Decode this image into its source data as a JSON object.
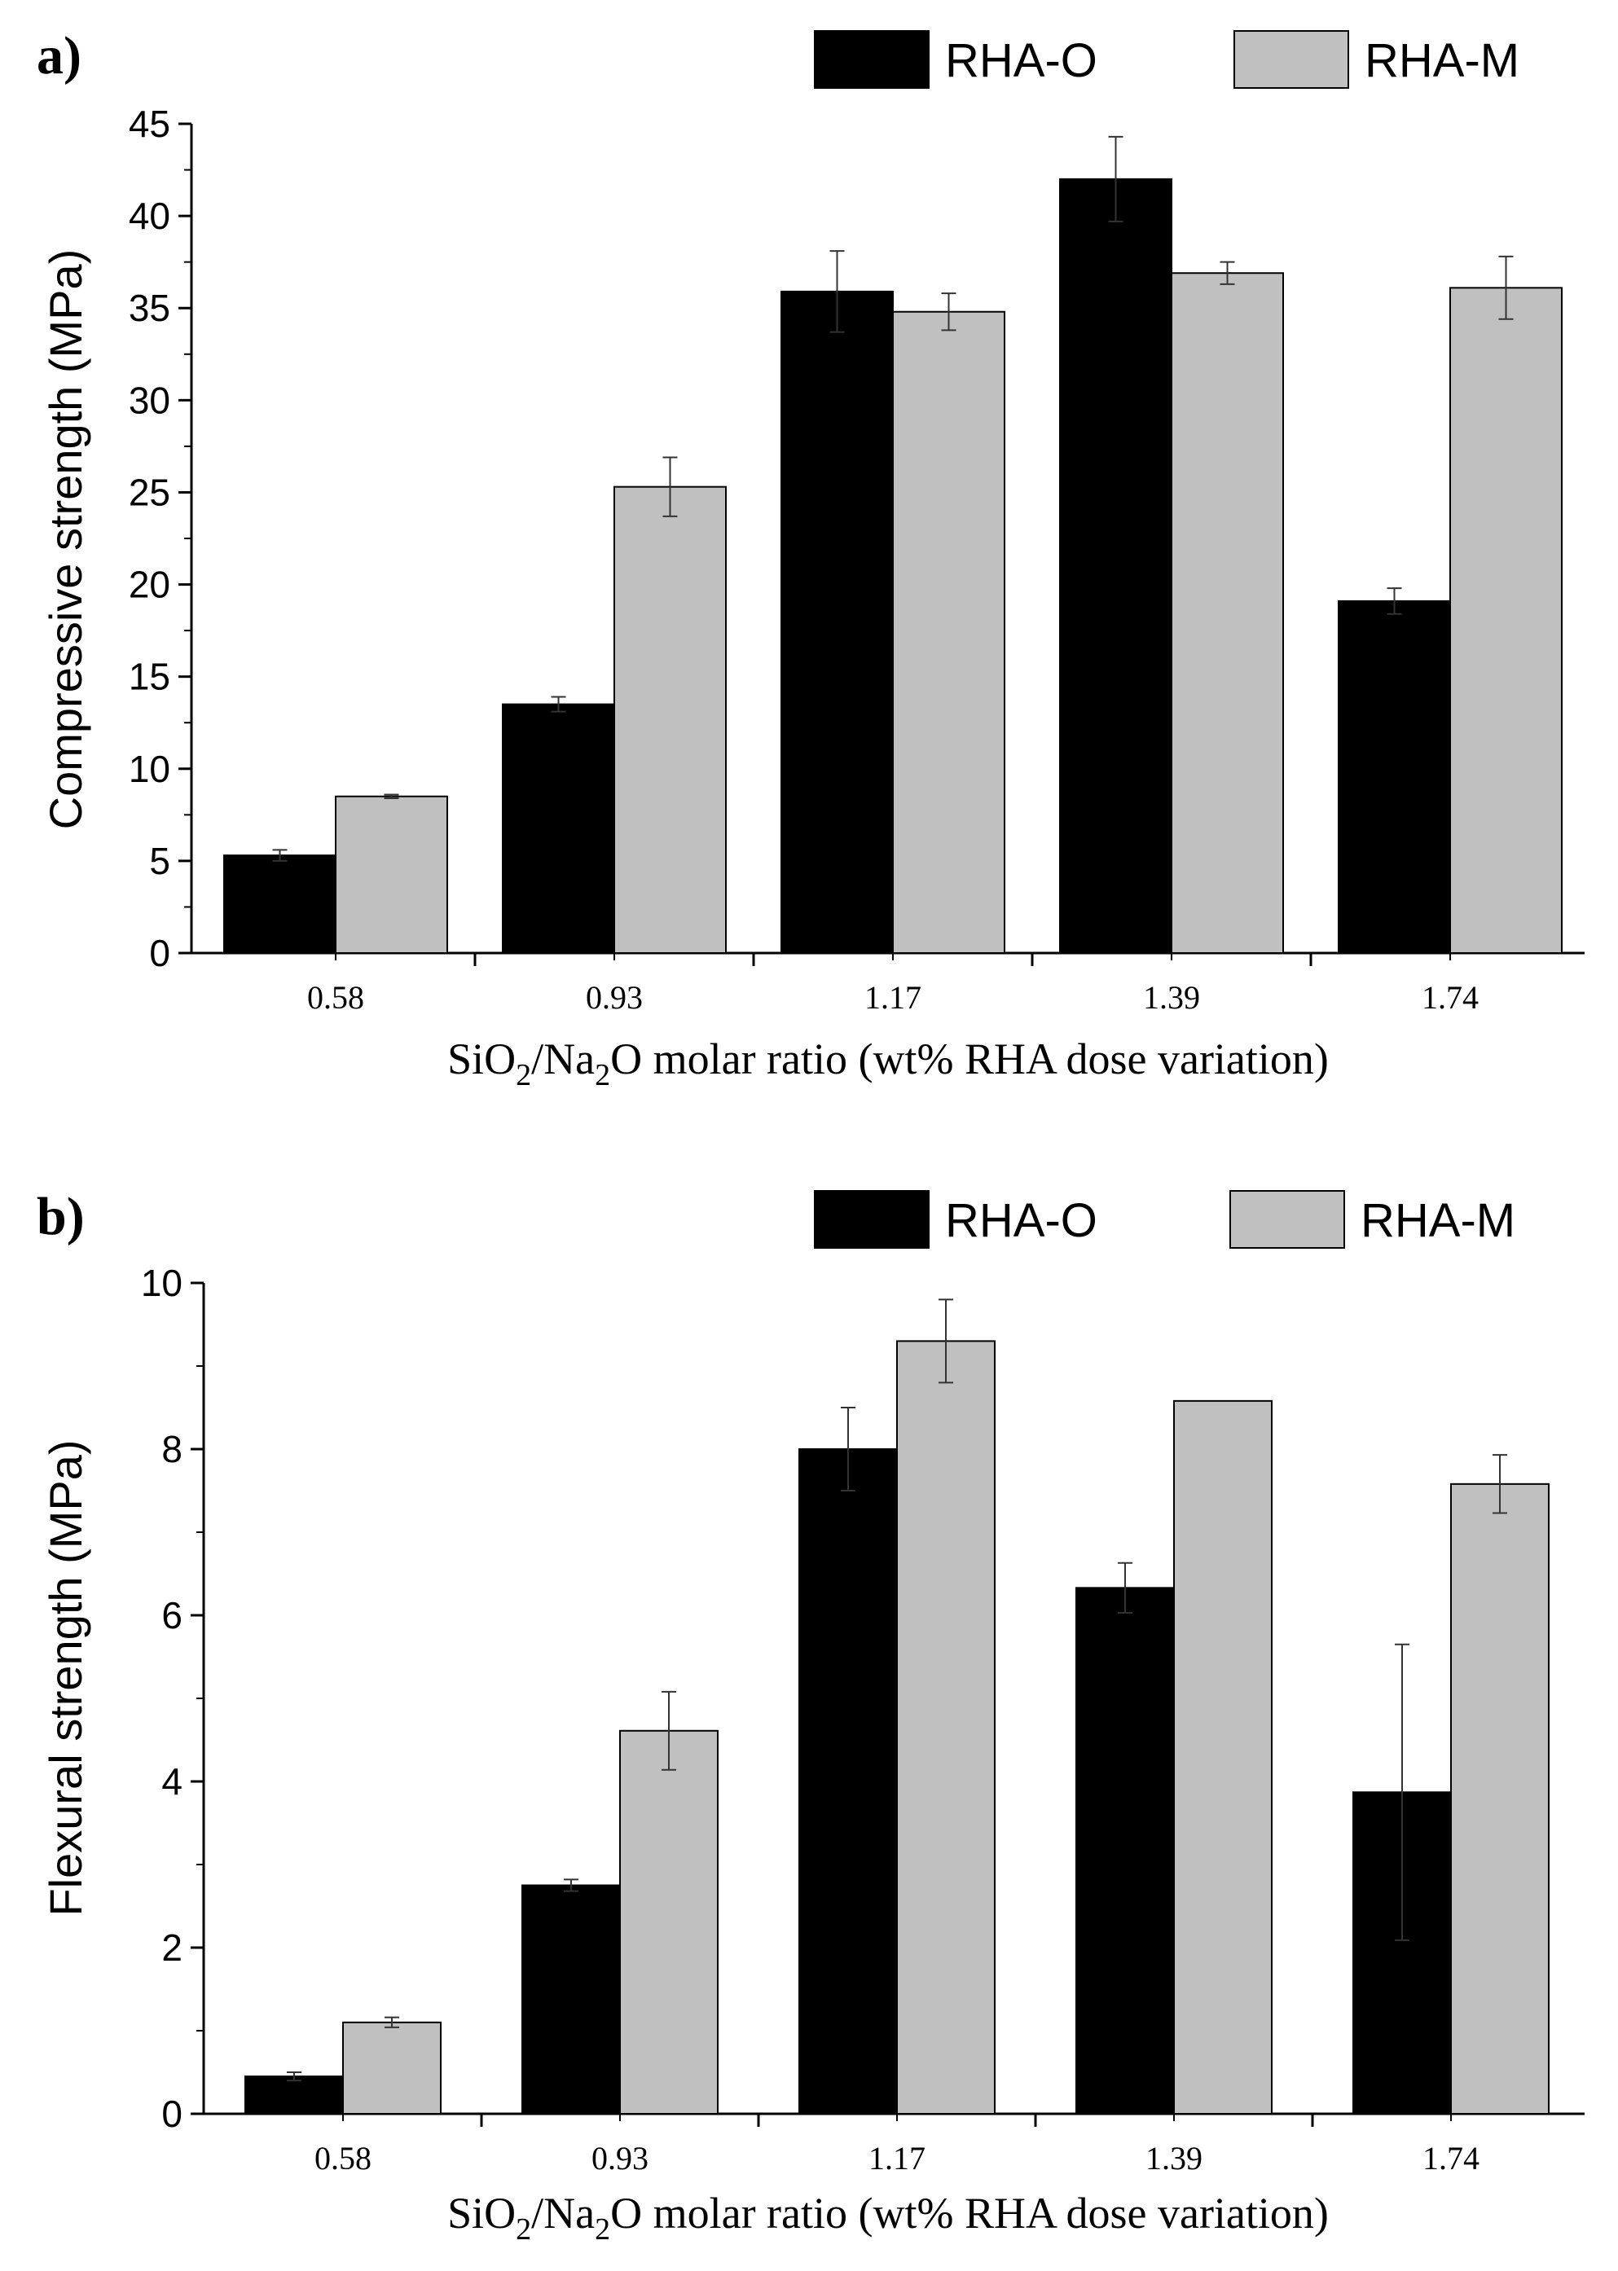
{
  "chart_data": [
    {
      "type": "bar",
      "panel_label": "a",
      "categories": [
        "0.58",
        "0.93",
        "1.17",
        "1.39",
        "1.74"
      ],
      "series": [
        {
          "name": "RHA-O",
          "color": "#000000",
          "values": [
            5.3,
            13.5,
            35.9,
            42.0,
            19.1
          ],
          "errors": [
            0.3,
            0.4,
            2.2,
            2.3,
            0.7
          ]
        },
        {
          "name": "RHA-M",
          "color": "#c0c0c0",
          "values": [
            8.5,
            25.3,
            34.8,
            36.9,
            36.1
          ],
          "errors": [
            0.1,
            1.6,
            1.0,
            0.6,
            1.7
          ]
        }
      ],
      "ylabel": "Compressive strength (MPa)",
      "xlabel": {
        "pre": "SiO",
        "sub1": "2",
        "mid": "/Na",
        "sub2": "2",
        "post": "O molar ratio (wt% RHA dose variation)"
      },
      "ylim": [
        0,
        45
      ],
      "yticks": [
        0,
        5,
        10,
        15,
        20,
        25,
        30,
        35,
        40,
        45
      ]
    },
    {
      "type": "bar",
      "panel_label": "b",
      "categories": [
        "0.58",
        "0.93",
        "1.17",
        "1.39",
        "1.74"
      ],
      "series": [
        {
          "name": "RHA-O",
          "color": "#000000",
          "values": [
            0.45,
            2.75,
            8.0,
            6.33,
            3.87
          ],
          "errors": [
            0.05,
            0.07,
            0.5,
            0.3,
            1.78
          ]
        },
        {
          "name": "RHA-M",
          "color": "#c0c0c0",
          "values": [
            1.1,
            4.61,
            9.3,
            8.58,
            7.58
          ],
          "errors": [
            0.06,
            0.47,
            0.5,
            0,
            0.35
          ]
        }
      ],
      "ylabel": "Flexural strength (MPa)",
      "xlabel": {
        "pre": "SiO",
        "sub1": "2",
        "mid": "/Na",
        "sub2": "2",
        "post": "O molar ratio (wt% RHA dose variation)"
      },
      "ylim": [
        0,
        10
      ],
      "yticks": [
        0,
        2,
        4,
        6,
        8,
        10
      ]
    }
  ]
}
